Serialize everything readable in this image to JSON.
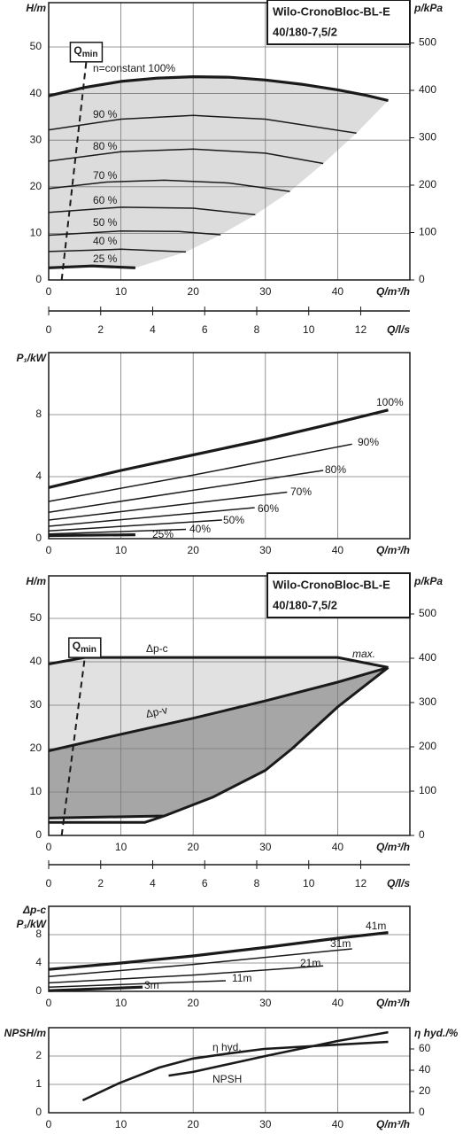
{
  "chart_data": [
    {
      "type": "line",
      "title": "Wilo-CronoBloc-BL-E",
      "subtitle": "40/180-7,5/2",
      "x_label": "Q/m³/h",
      "y_label": "H/m",
      "y2_label": "p/kPa",
      "xlim": [
        0,
        50
      ],
      "xticks": [
        0,
        10,
        20,
        30,
        40
      ],
      "ylim": [
        0,
        59.5
      ],
      "yticks": [
        0,
        10,
        20,
        30,
        40,
        50
      ],
      "y2lim": [
        0,
        585
      ],
      "y2ticks": [
        0,
        100,
        200,
        300,
        400,
        500
      ],
      "x2_label": "Q/l/s",
      "x2lim": [
        0,
        13.89
      ],
      "x2ticks": [
        0,
        2,
        4,
        6,
        8,
        10,
        12
      ],
      "grid": true,
      "color": "#1a1a1a",
      "fill_color": "#dcdcdc",
      "qmin": {
        "label": "Q",
        "label_sub": "min",
        "x": [
          1.8,
          5.2
        ],
        "values": [
          0,
          46.8
        ]
      },
      "series": [
        {
          "name": "n=constant 100%",
          "x": [
            0,
            5,
            10,
            15,
            20,
            25,
            30,
            35,
            40,
            44,
            47
          ],
          "values": [
            39.5,
            41.3,
            42.6,
            43.3,
            43.6,
            43.5,
            42.9,
            42,
            40.8,
            39.6,
            38.5
          ]
        },
        {
          "name": "90 %",
          "x": [
            0,
            10,
            20,
            30,
            42.6
          ],
          "values": [
            32.2,
            34.5,
            35.3,
            34.5,
            31.5
          ]
        },
        {
          "name": "80 %",
          "x": [
            0,
            10,
            20,
            30,
            38
          ],
          "values": [
            25.5,
            27.5,
            28.1,
            27.2,
            25
          ]
        },
        {
          "name": "70 %",
          "x": [
            0,
            8,
            16,
            25,
            33.4
          ],
          "values": [
            19.6,
            21,
            21.4,
            20.8,
            19
          ]
        },
        {
          "name": "60 %",
          "x": [
            0,
            10,
            20,
            28.6
          ],
          "values": [
            14.5,
            15.6,
            15.4,
            14
          ]
        },
        {
          "name": "50 %",
          "x": [
            0,
            10,
            18,
            23.8
          ],
          "values": [
            9.6,
            10.5,
            10.4,
            9.7
          ]
        },
        {
          "name": "40 %",
          "x": [
            0,
            10,
            19
          ],
          "values": [
            6.1,
            6.6,
            6
          ]
        },
        {
          "name": "25 %",
          "x": [
            0,
            6,
            12
          ],
          "values": [
            2.6,
            3,
            2.6
          ]
        }
      ]
    },
    {
      "type": "line",
      "x_label": "Q/m³/h",
      "y_label": "P₁/kW",
      "xlim": [
        0,
        50
      ],
      "xticks": [
        0,
        10,
        20,
        30,
        40
      ],
      "ylim": [
        0,
        12
      ],
      "yticks": [
        0,
        4,
        8
      ],
      "grid": true,
      "color": "#1a1a1a",
      "series": [
        {
          "name": "100%",
          "x": [
            0,
            10,
            20,
            30,
            40,
            47
          ],
          "values": [
            3.3,
            4.4,
            5.4,
            6.4,
            7.5,
            8.3
          ]
        },
        {
          "name": "90%",
          "x": [
            0,
            20,
            42
          ],
          "values": [
            2.4,
            4.1,
            6.1
          ]
        },
        {
          "name": "80%",
          "x": [
            0,
            38
          ],
          "values": [
            1.7,
            4.4
          ]
        },
        {
          "name": "70%",
          "x": [
            0,
            33
          ],
          "values": [
            1.2,
            3
          ]
        },
        {
          "name": "60%",
          "x": [
            0,
            28.5
          ],
          "values": [
            0.8,
            2
          ]
        },
        {
          "name": "50%",
          "x": [
            0,
            24
          ],
          "values": [
            0.5,
            1.2
          ]
        },
        {
          "name": "40%",
          "x": [
            0,
            19
          ],
          "values": [
            0.3,
            0.6
          ]
        },
        {
          "name": "25%",
          "x": [
            0,
            12
          ],
          "values": [
            0.2,
            0.25
          ]
        }
      ]
    },
    {
      "type": "area",
      "title": "Wilo-CronoBloc-BL-E",
      "subtitle": "40/180-7,5/2",
      "x_label": "Q/m³/h",
      "y_label": "H/m",
      "y2_label": "p/kPa",
      "xlim": [
        0,
        50
      ],
      "xticks": [
        0,
        10,
        20,
        30,
        40
      ],
      "ylim": [
        0,
        59.8
      ],
      "yticks": [
        0,
        10,
        20,
        30,
        40,
        50
      ],
      "y2lim": [
        0,
        586
      ],
      "y2ticks": [
        0,
        100,
        200,
        300,
        400,
        500
      ],
      "x2_label": "Q/l/s",
      "x2lim": [
        0,
        13.89
      ],
      "x2ticks": [
        0,
        2,
        4,
        6,
        8,
        10,
        12
      ],
      "grid": true,
      "color": "#1a1a1a",
      "fill_colors": [
        "#e1e1e1",
        "#a6a6a6"
      ],
      "max_label": "max.",
      "qmin": {
        "label": "Q",
        "label_sub": "min",
        "x": [
          1.8,
          5
        ],
        "values": [
          0,
          41
        ]
      },
      "series": [
        {
          "name": "Δp-c",
          "x": [
            0,
            5,
            40,
            47
          ],
          "values": [
            39.5,
            41,
            41,
            38.7
          ]
        },
        {
          "name": "Δp-v",
          "x": [
            0,
            10,
            20,
            30,
            40,
            47
          ],
          "values": [
            19.5,
            23.3,
            27,
            31,
            35.3,
            38.7
          ]
        },
        {
          "x": [
            0,
            16,
            22.7,
            30,
            33.7,
            40,
            47
          ],
          "values": [
            4,
            4.5,
            8.8,
            15,
            20,
            29.6,
            38.7
          ]
        },
        {
          "x": [
            0,
            13.3,
            16
          ],
          "values": [
            3,
            3,
            4.5
          ]
        }
      ]
    },
    {
      "type": "line",
      "x_label": "Q/m³/h",
      "y_label_lines": [
        "Δp-c",
        "P₁/kW"
      ],
      "xlim": [
        0,
        50
      ],
      "xticks": [
        0,
        10,
        20,
        30,
        40
      ],
      "ylim": [
        0,
        12
      ],
      "yticks": [
        0,
        4,
        8
      ],
      "grid": true,
      "color": "#1a1a1a",
      "series": [
        {
          "name": "41m",
          "x": [
            0,
            10,
            20,
            30,
            40,
            47
          ],
          "values": [
            3.1,
            4,
            5,
            6.2,
            7.5,
            8.3
          ]
        },
        {
          "name": "31m",
          "x": [
            0,
            20,
            42
          ],
          "values": [
            2.1,
            3.8,
            6
          ]
        },
        {
          "name": "21m",
          "x": [
            0,
            20,
            38
          ],
          "values": [
            1.2,
            2.3,
            3.6
          ]
        },
        {
          "name": "11m",
          "x": [
            0,
            24.5
          ],
          "values": [
            0.6,
            1.5
          ]
        },
        {
          "name": "3m",
          "x": [
            0,
            13
          ],
          "values": [
            0.1,
            0.6
          ]
        }
      ]
    },
    {
      "type": "line",
      "x_label": "Q/m³/h",
      "y_label": "NPSH/m",
      "y2_label": "η hyd./%",
      "xlim": [
        0,
        50
      ],
      "xticks": [
        0,
        10,
        20,
        30,
        40
      ],
      "ylim": [
        0,
        3
      ],
      "yticks": [
        0,
        1,
        2
      ],
      "y2lim": [
        0,
        80
      ],
      "y2ticks": [
        0,
        20,
        40,
        60
      ],
      "grid": true,
      "color": "#1a1a1a",
      "series": [
        {
          "name": "η hyd.",
          "axis": "y2",
          "x": [
            4.7,
            9.8,
            15.3,
            20,
            25.2,
            29.8,
            39.9,
            47
          ],
          "values": [
            11.7,
            28,
            42.5,
            51,
            56,
            60,
            64,
            66.7
          ]
        },
        {
          "name": "NPSH",
          "x": [
            16.6,
            20,
            30,
            40,
            47
          ],
          "values": [
            1.31,
            1.44,
            2,
            2.53,
            2.84
          ]
        }
      ]
    }
  ]
}
